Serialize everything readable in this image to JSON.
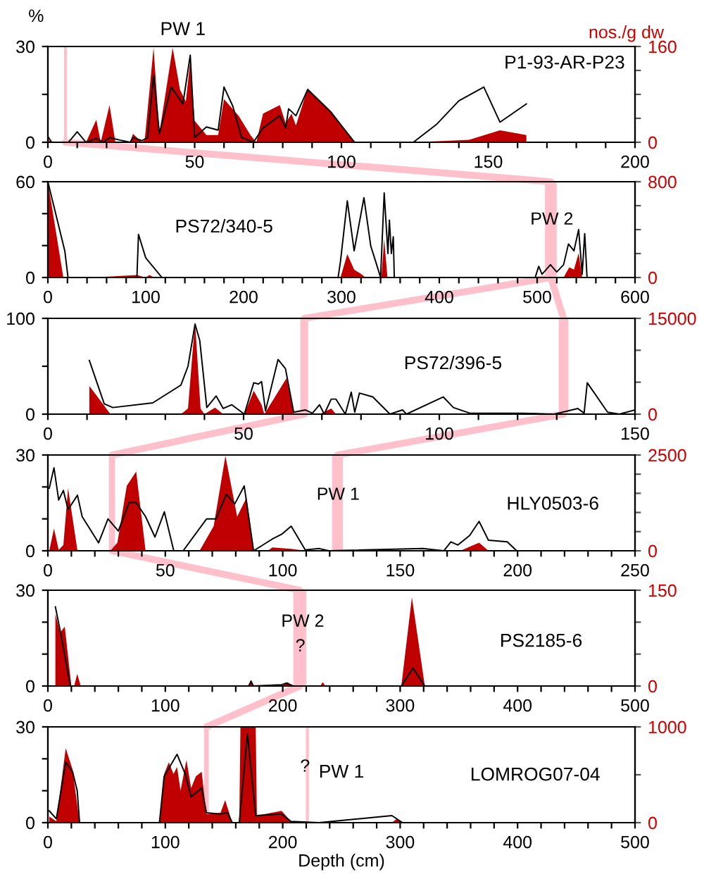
{
  "chart_data": [
    {
      "type": "line",
      "ylabel": "%",
      "y2label": "nos./g dw",
      "xlim": [
        0,
        200
      ],
      "ylim": [
        0,
        30
      ],
      "y2lim": [
        0,
        160
      ],
      "xticks": [
        0,
        {
          "value": 10,
          "label": null
        },
        {
          "value": 20,
          "label": null
        },
        {
          "value": 30,
          "label": null
        },
        {
          "value": 40,
          "label": null
        },
        50,
        {
          "value": 60,
          "label": null
        },
        {
          "value": 70,
          "label": null
        },
        {
          "value": 80,
          "label": null
        },
        {
          "value": 90,
          "label": null
        },
        100,
        {
          "value": 110,
          "label": null
        },
        {
          "value": 120,
          "label": null
        },
        {
          "value": 130,
          "label": null
        },
        {
          "value": 140,
          "label": null
        },
        150,
        {
          "value": 160,
          "label": null
        },
        {
          "value": 170,
          "label": null
        },
        {
          "value": 180,
          "label": null
        },
        {
          "value": 190,
          "label": null
        },
        200
      ],
      "yticks": [
        0,
        {
          "value": 15,
          "label": null
        },
        30
      ],
      "y2ticks": [
        0,
        {
          "value": 40,
          "label": null
        },
        {
          "value": 80,
          "label": null
        },
        {
          "value": 120,
          "label": null
        },
        160
      ],
      "series": [
        {
          "type": "area",
          "axis": "y2",
          "color": "#c00000",
          "x": [
            0,
            1.3,
            13,
            16.5,
            18,
            21,
            23,
            28,
            29,
            32,
            33,
            36,
            38,
            42.5,
            45,
            47,
            48.5,
            50,
            54,
            58,
            60,
            65,
            69,
            71,
            73.3,
            79,
            81,
            83,
            84.5,
            88.5,
            96.5,
            104.5,
            124.5,
            143.5,
            154,
            163
          ],
          "values": [
            4,
            0,
            0,
            37.6,
            0,
            62,
            0,
            0,
            14,
            0,
            4,
            158,
            16,
            158,
            88,
            68,
            136,
            36,
            12,
            12,
            72,
            44,
            12,
            0,
            48,
            62,
            32,
            48,
            28,
            90,
            52,
            0,
            0,
            4,
            20,
            12
          ]
        },
        {
          "color": "#000000",
          "x": [
            0,
            1.3,
            7,
            10,
            13,
            16.5,
            19,
            21,
            24.5,
            28,
            29,
            32,
            34,
            36,
            38,
            42,
            46,
            48.5,
            50,
            54,
            58,
            60,
            63,
            66,
            70,
            73.3,
            79,
            81,
            82,
            84.5,
            88.5,
            96.5,
            104.5,
            124.5,
            132.5,
            140,
            148.5,
            154,
            163
          ],
          "values": [
            1.8,
            0,
            0,
            3.3,
            0,
            1.2,
            0,
            1.5,
            0.7,
            0,
            1.5,
            0.5,
            1.5,
            21,
            2.7,
            17.3,
            12,
            27.3,
            1.5,
            4.8,
            3.8,
            17.3,
            11.3,
            1.5,
            0,
            4.5,
            8.3,
            4.5,
            10.5,
            8.3,
            16.5,
            9.3,
            0,
            0,
            5.7,
            13,
            17.3,
            6.3,
            12
          ]
        }
      ],
      "ref_lines": [
        {
          "axis": "x",
          "value": 6,
          "color": "#ffc0cb"
        }
      ],
      "annotations": [
        "PW 1",
        "P1-93-AR-P23"
      ]
    },
    {
      "type": "line",
      "xlim": [
        0,
        600
      ],
      "ylim": [
        0,
        60
      ],
      "y2lim": [
        0,
        800
      ],
      "xticks": [
        0,
        {
          "value": 20,
          "label": null
        },
        {
          "value": 40,
          "label": null
        },
        {
          "value": 60,
          "label": null
        },
        {
          "value": 80,
          "label": null
        },
        100,
        {
          "value": 120,
          "label": null
        },
        {
          "value": 140,
          "label": null
        },
        {
          "value": 160,
          "label": null
        },
        {
          "value": 180,
          "label": null
        },
        200,
        {
          "value": 220,
          "label": null
        },
        {
          "value": 240,
          "label": null
        },
        {
          "value": 260,
          "label": null
        },
        {
          "value": 280,
          "label": null
        },
        300,
        {
          "value": 320,
          "label": null
        },
        {
          "value": 340,
          "label": null
        },
        {
          "value": 360,
          "label": null
        },
        {
          "value": 380,
          "label": null
        },
        400,
        {
          "value": 420,
          "label": null
        },
        {
          "value": 440,
          "label": null
        },
        {
          "value": 460,
          "label": null
        },
        {
          "value": 480,
          "label": null
        },
        500,
        {
          "value": 520,
          "label": null
        },
        {
          "value": 540,
          "label": null
        },
        {
          "value": 560,
          "label": null
        },
        {
          "value": 580,
          "label": null
        },
        600
      ],
      "yticks": [
        0,
        {
          "value": 20,
          "label": null
        },
        {
          "value": 40,
          "label": null
        },
        60
      ],
      "y2ticks": [
        0,
        {
          "value": 200,
          "label": null
        },
        {
          "value": 400,
          "label": null
        },
        {
          "value": 600,
          "label": null
        },
        800
      ],
      "series": [
        {
          "type": "area",
          "axis": "y2",
          "color": "#c00000",
          "x": [
            0,
            15.8,
            44.6,
            91,
            100,
            103.7,
            109,
            299,
            306,
            313,
            320.6,
            324.5,
            340.8,
            343.7,
            347,
            527,
            532.8,
            537.6,
            542.4,
            546
          ],
          "values": [
            800,
            0,
            0,
            20,
            0,
            20,
            0,
            0,
            195,
            66,
            27,
            0,
            0,
            320,
            0,
            0,
            86,
            66,
            203,
            0
          ]
        },
        {
          "color": "#000000",
          "x": [
            0,
            17.3,
            20.6,
            91,
            92.6,
            100,
            116.6,
            296.6,
            299,
            306,
            313,
            323,
            330,
            335,
            340,
            343.7,
            347.5,
            349,
            351,
            353,
            354,
            498,
            501.6,
            505,
            513.6,
            520,
            527,
            532,
            537.6,
            542.4,
            546,
            548.6,
            551
          ],
          "values": [
            60,
            16.7,
            0,
            0,
            27,
            12.3,
            0,
            0,
            10,
            48,
            16.7,
            50,
            19.6,
            10,
            0,
            53,
            15,
            36,
            15,
            25.5,
            0,
            0,
            7,
            2,
            8,
            3.5,
            8,
            21,
            16.7,
            30,
            2,
            27.5,
            0
          ]
        }
      ],
      "bands": [
        {
          "axis": "x",
          "from": 508,
          "to": 520,
          "color": "#ffc0cb"
        }
      ],
      "annotations": [
        {
          "text": "PW 2",
          "x": 515,
          "y": 36
        },
        "PS72/340-5"
      ]
    },
    {
      "type": "line",
      "xlim": [
        0,
        150
      ],
      "ylim": [
        0,
        100
      ],
      "y2lim": [
        0,
        15000
      ],
      "xticks": [
        0,
        {
          "value": 10,
          "label": null
        },
        {
          "value": 20,
          "label": null
        },
        {
          "value": 30,
          "label": null
        },
        {
          "value": 40,
          "label": null
        },
        50,
        {
          "value": 60,
          "label": null
        },
        {
          "value": 70,
          "label": null
        },
        {
          "value": 80,
          "label": null
        },
        {
          "value": 90,
          "label": null
        },
        100,
        {
          "value": 110,
          "label": null
        },
        {
          "value": 120,
          "label": null
        },
        {
          "value": 130,
          "label": null
        },
        {
          "value": 140,
          "label": null
        },
        150
      ],
      "yticks": [
        0,
        {
          "value": 50,
          "label": null
        },
        100
      ],
      "y2ticks": [
        0,
        {
          "value": 5000,
          "label": null
        },
        {
          "value": 10000,
          "label": null
        },
        15000
      ],
      "series": [
        {
          "type": "area",
          "axis": "y2",
          "color": "#c00000",
          "x": [
            10.6,
            16,
            34,
            35.8,
            37.6,
            39,
            40,
            42.7,
            44.8,
            50.2,
            52.6,
            54.6,
            55.3,
            61,
            62.8,
            69.4,
            72.4,
            73.6
          ],
          "values": [
            4410,
            0,
            0,
            882,
            14480,
            882,
            0,
            1029,
            0,
            0,
            3675,
            1470,
            0,
            5660,
            0,
            0,
            882,
            0
          ]
        },
        {
          "color": "#000000",
          "x": [
            10.6,
            14.4,
            16.6,
            26.8,
            34,
            35.8,
            37.6,
            38.8,
            40.6,
            43,
            44.8,
            47,
            50.2,
            52.6,
            53.8,
            54.6,
            55.6,
            58.8,
            60.7,
            62.8,
            65.8,
            67.6,
            69.4,
            70.6,
            72.4,
            73.6,
            76,
            77.5,
            78.4,
            79.6,
            83,
            87.4,
            90.6,
            91.6,
            101,
            103.6,
            107.8,
            121,
            129.4,
            135.4,
            137,
            137.8,
            143,
            146,
            150
          ],
          "values": [
            56,
            10.8,
            6.9,
            11.8,
            30.4,
            50,
            94,
            77,
            6.9,
            19,
            5.9,
            9.8,
            0,
            32.8,
            31.4,
            34,
            3.4,
            57,
            47.5,
            2,
            4.4,
            1,
            9.8,
            0,
            15.7,
            15.7,
            0,
            23,
            2,
            22,
            18,
            0,
            4.4,
            0,
            18,
            6.9,
            1,
            1,
            0,
            5.9,
            1,
            32.8,
            2,
            0,
            4.4
          ]
        }
      ],
      "bands": [
        {
          "axis": "x",
          "from": 64.5,
          "to": 66.5,
          "color": "#ffc0cb"
        },
        {
          "axis": "x",
          "from": 130.5,
          "to": 133,
          "color": "#ffc0cb"
        }
      ],
      "annotations": [
        "PS72/396-5"
      ]
    },
    {
      "type": "line",
      "xlim": [
        0,
        250
      ],
      "ylim": [
        0,
        30
      ],
      "y2lim": [
        0,
        2500
      ],
      "xticks": [
        0,
        {
          "value": 10,
          "label": null
        },
        {
          "value": 20,
          "label": null
        },
        {
          "value": 30,
          "label": null
        },
        {
          "value": 40,
          "label": null
        },
        50,
        {
          "value": 60,
          "label": null
        },
        {
          "value": 70,
          "label": null
        },
        {
          "value": 80,
          "label": null
        },
        {
          "value": 90,
          "label": null
        },
        100,
        {
          "value": 110,
          "label": null
        },
        {
          "value": 120,
          "label": null
        },
        {
          "value": 130,
          "label": null
        },
        {
          "value": 140,
          "label": null
        },
        150,
        {
          "value": 160,
          "label": null
        },
        {
          "value": 170,
          "label": null
        },
        {
          "value": 180,
          "label": null
        },
        {
          "value": 190,
          "label": null
        },
        200,
        {
          "value": 210,
          "label": null
        },
        {
          "value": 220,
          "label": null
        },
        {
          "value": 230,
          "label": null
        },
        {
          "value": 240,
          "label": null
        },
        250
      ],
      "yticks": [
        0,
        {
          "value": 10,
          "label": null
        },
        {
          "value": 20,
          "label": null
        },
        30
      ],
      "y2ticks": [
        0,
        {
          "value": 500,
          "label": null
        },
        {
          "value": 1000,
          "label": null
        },
        {
          "value": 1500,
          "label": null
        },
        {
          "value": 2000,
          "label": null
        },
        2500
      ],
      "series": [
        {
          "type": "area",
          "axis": "y2",
          "color": "#c00000",
          "x": [
            0.6,
            2.6,
            4.6,
            6.6,
            8.6,
            12.6,
            26.6,
            29.6,
            33.6,
            37.6,
            41.6,
            64.6,
            70.6,
            75.6,
            80.6,
            84.6,
            87.6,
            93.6,
            95.6,
            103.6,
            109.6,
            175.6,
            183.6,
            187.6
          ],
          "values": [
            0,
            582,
            25,
            150,
            1634,
            0,
            0,
            210,
            1696,
            2067,
            0,
            0,
            644,
            2476,
            891,
            1387,
            0,
            0,
            87,
            50,
            0,
            0,
            210,
            0
          ]
        },
        {
          "color": "#000000",
          "x": [
            0.6,
            2.6,
            4.6,
            6.6,
            8.6,
            12.6,
            14.6,
            21.6,
            25.6,
            30,
            34.6,
            37.6,
            41.6,
            45.6,
            49.6,
            53.6,
            57.6,
            67.6,
            71.6,
            76,
            79.6,
            83.6,
            87.6,
            95.6,
            99.6,
            103.6,
            109.6,
            115.6,
            119.6,
            159.6,
            168.6,
            171.6,
            174.6,
            179.6,
            183.6,
            187.6,
            195.6,
            199.6,
            219.6
          ],
          "values": [
            19.6,
            26,
            15.9,
            18.9,
            12.9,
            17.4,
            10.7,
            2.5,
            10,
            6.2,
            15.1,
            15.1,
            10.7,
            4.3,
            12.2,
            0,
            0,
            10,
            10,
            17.7,
            14.7,
            20.3,
            0,
            3.7,
            5.2,
            7.7,
            0.3,
            0.7,
            0,
            0.7,
            0,
            2.8,
            1.8,
            4.8,
            9.2,
            3.3,
            2.8,
            0,
            0
          ]
        }
      ],
      "bands": [
        {
          "axis": "x",
          "from": 26,
          "to": 28.6,
          "color": "#ffc0cb"
        },
        {
          "axis": "x",
          "from": 121,
          "to": 125.6,
          "color": "#ffc0cb"
        }
      ],
      "annotations": [
        {
          "text": "PW 1",
          "x": 123.6,
          "y": 17.4
        },
        "HLY0503-6"
      ]
    },
    {
      "type": "line",
      "xlim": [
        0,
        500
      ],
      "ylim": [
        0,
        30
      ],
      "y2lim": [
        0,
        150
      ],
      "xticks": [
        0,
        {
          "value": 20,
          "label": null
        },
        {
          "value": 40,
          "label": null
        },
        {
          "value": 60,
          "label": null
        },
        {
          "value": 80,
          "label": null
        },
        100,
        {
          "value": 120,
          "label": null
        },
        {
          "value": 140,
          "label": null
        },
        {
          "value": 160,
          "label": null
        },
        {
          "value": 180,
          "label": null
        },
        200,
        {
          "value": 220,
          "label": null
        },
        {
          "value": 240,
          "label": null
        },
        {
          "value": 260,
          "label": null
        },
        {
          "value": 280,
          "label": null
        },
        300,
        {
          "value": 320,
          "label": null
        },
        {
          "value": 340,
          "label": null
        },
        {
          "value": 360,
          "label": null
        },
        {
          "value": 380,
          "label": null
        },
        400,
        {
          "value": 420,
          "label": null
        },
        {
          "value": 440,
          "label": null
        },
        {
          "value": 460,
          "label": null
        },
        {
          "value": 480,
          "label": null
        },
        500
      ],
      "yticks": [
        0,
        {
          "value": 10,
          "label": null
        },
        {
          "value": 20,
          "label": null
        },
        30
      ],
      "y2ticks": [
        0,
        {
          "value": 50,
          "label": null
        },
        {
          "value": 100,
          "label": null
        },
        150
      ],
      "series": [
        {
          "type": "area",
          "axis": "y2",
          "color": "#c00000",
          "x": [
            6.4,
            10.4,
            14.4,
            20,
            22.4,
            25,
            28,
            171,
            173,
            175,
            199,
            204,
            209,
            232,
            234,
            236.4,
            301,
            310,
            321
          ],
          "values": [
            113,
            83.5,
            93,
            0,
            0,
            19,
            0,
            0,
            9.6,
            0,
            0,
            6,
            0,
            0,
            6,
            0,
            0,
            139,
            0
          ]
        },
        {
          "color": "#000000",
          "x": [
            6.4,
            11.2,
            19.2,
            171,
            173,
            175,
            199,
            203,
            209,
            301,
            311,
            321
          ],
          "values": [
            24.8,
            16,
            0,
            0,
            1.5,
            0,
            0.4,
            0.9,
            0,
            0,
            5.6,
            0
          ]
        }
      ],
      "bands": [
        {
          "axis": "x",
          "from": 209,
          "to": 220,
          "color": "#ffc0cb"
        }
      ],
      "annotations": [
        {
          "text": "PW 2",
          "x": 217,
          "y": 20
        },
        {
          "text": "?",
          "x": 215,
          "y": 12.3
        },
        "PS2185-6"
      ]
    },
    {
      "type": "line",
      "xlabel": "Depth (cm)",
      "xlim": [
        0,
        500
      ],
      "ylim": [
        0,
        30
      ],
      "y2lim": [
        0,
        1000
      ],
      "xticks": [
        0,
        {
          "value": 20,
          "label": null
        },
        {
          "value": 40,
          "label": null
        },
        {
          "value": 60,
          "label": null
        },
        {
          "value": 80,
          "label": null
        },
        100,
        {
          "value": 120,
          "label": null
        },
        {
          "value": 140,
          "label": null
        },
        {
          "value": 160,
          "label": null
        },
        {
          "value": 180,
          "label": null
        },
        200,
        {
          "value": 220,
          "label": null
        },
        {
          "value": 240,
          "label": null
        },
        {
          "value": 260,
          "label": null
        },
        {
          "value": 280,
          "label": null
        },
        300,
        {
          "value": 320,
          "label": null
        },
        {
          "value": 340,
          "label": null
        },
        {
          "value": 360,
          "label": null
        },
        {
          "value": 380,
          "label": null
        },
        400,
        {
          "value": 420,
          "label": null
        },
        {
          "value": 440,
          "label": null
        },
        {
          "value": 460,
          "label": null
        },
        {
          "value": 480,
          "label": null
        },
        500
      ],
      "yticks": [
        0,
        {
          "value": 10,
          "label": null
        },
        {
          "value": 20,
          "label": null
        },
        30
      ],
      "y2ticks": [
        0,
        {
          "value": 500,
          "label": null
        },
        1000
      ],
      "series": [
        {
          "type": "area",
          "axis": "y2",
          "color": "#c00000",
          "x": [
            1.2,
            7.2,
            15.2,
            21,
            27,
            95,
            99,
            103,
            107,
            110,
            113,
            118,
            122,
            126,
            131,
            135,
            147,
            151,
            157,
            163,
            164,
            177,
            178,
            199,
            207,
            213,
            293,
            297,
            302
          ],
          "values": [
            64,
            15,
            778,
            557,
            0,
            0,
            507,
            630,
            507,
            581,
            335,
            655,
            360,
            483,
            532,
            89,
            103,
            236,
            0,
            0,
            1000,
            1000,
            74,
            123,
            15,
            0,
            0,
            39,
            0
          ]
        },
        {
          "color": "#000000",
          "x": [
            1.2,
            7.2,
            15.2,
            21,
            25,
            27,
            95,
            99,
            110,
            117,
            122,
            131,
            135,
            147,
            153,
            157,
            163,
            170,
            177,
            199,
            207,
            231,
            293,
            302
          ],
          "values": [
            3.7,
            1.2,
            18.9,
            16,
            10,
            0,
            0,
            14.5,
            21.4,
            15.2,
            8.1,
            10.8,
            3.1,
            2.7,
            3.1,
            0,
            0,
            27.8,
            2.2,
            2.7,
            0.4,
            0,
            2.2,
            0
          ]
        }
      ],
      "bands": [
        {
          "axis": "x",
          "from": 133,
          "to": 137,
          "color": "#ffc0cb"
        }
      ],
      "ref_lines": [
        {
          "axis": "x",
          "value": 221,
          "color": "#ffc0cb"
        }
      ],
      "annotations": [
        {
          "text": "?",
          "x": 219,
          "y": 17.4
        },
        "PW 1",
        "LOMROG07-04"
      ]
    }
  ]
}
